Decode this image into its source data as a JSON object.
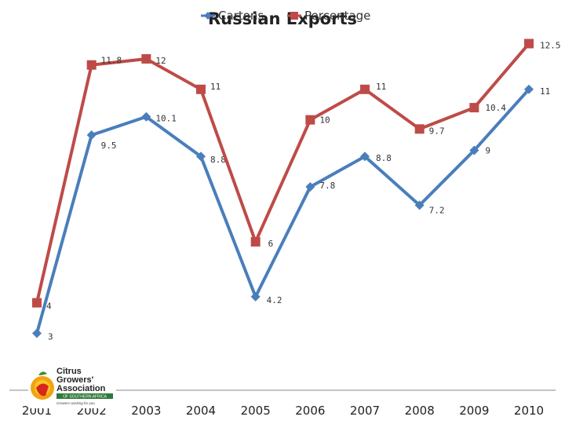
{
  "chart_data": {
    "type": "line",
    "title": "Russian Exports",
    "categories": [
      "2001",
      "2002",
      "2003",
      "2004",
      "2005",
      "2006",
      "2007",
      "2008",
      "2009",
      "2010"
    ],
    "series": [
      {
        "name": "Cartons",
        "color": "#4a7ebb",
        "marker": "diamond",
        "values": [
          3,
          9.5,
          10.1,
          8.8,
          4.2,
          7.8,
          8.8,
          7.2,
          9,
          11
        ]
      },
      {
        "name": "Percentage",
        "color": "#be4b48",
        "marker": "square",
        "values": [
          4,
          11.8,
          12,
          11,
          6,
          10,
          11,
          9.7,
          10.4,
          12.5
        ]
      }
    ],
    "xlabel": "",
    "ylabel": "",
    "ylim": [
      2.6,
      12.9
    ],
    "grid": false,
    "legend_position": "top"
  },
  "logo": {
    "line1": "Citrus",
    "line2": "Growers'",
    "line3": "Association",
    "strip": "OF SOUTHERN AFRICA",
    "tagline": "Growers working for you"
  }
}
